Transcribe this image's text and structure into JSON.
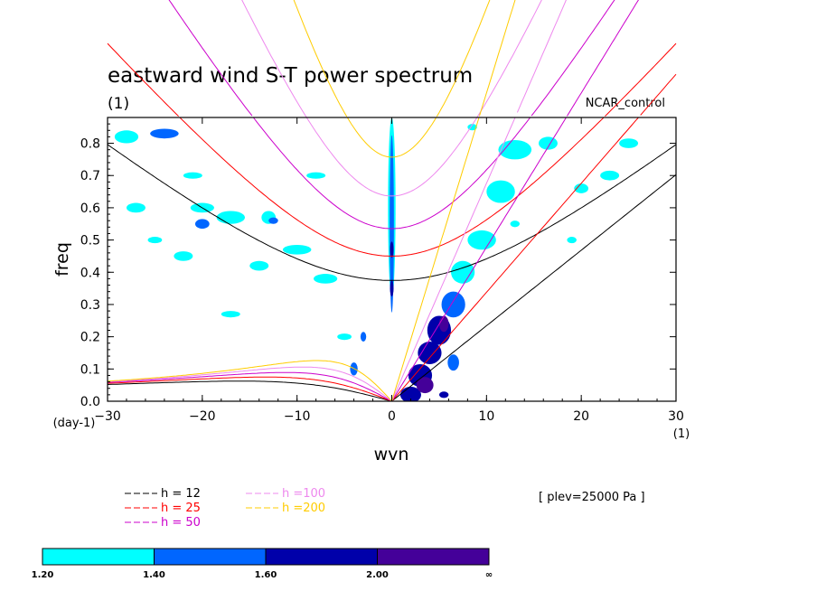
{
  "chart_data": {
    "type": "heatmap",
    "title": "eastward wind S-T power spectrum",
    "subtitle_left": "(1)",
    "subtitle_right": "NCAR_control",
    "xlabel": "wvn",
    "ylabel": "freq",
    "x_unit_label": "(1)",
    "y_unit_label": "(day-1)",
    "xlim": [
      -30,
      30
    ],
    "ylim": [
      0,
      0.88
    ],
    "xticks": [
      -30,
      -20,
      -10,
      0,
      10,
      20,
      30
    ],
    "yticks": [
      0.0,
      0.1,
      0.2,
      0.3,
      0.4,
      0.5,
      0.6,
      0.7,
      0.8
    ],
    "annotation": "[ plev=25000 Pa ]",
    "legend": [
      {
        "name": "h = 12",
        "color": "#000000"
      },
      {
        "name": "h = 25",
        "color": "#ff0000"
      },
      {
        "name": "h = 50",
        "color": "#cc00cc"
      },
      {
        "name": "h =100",
        "color": "#ee88ee"
      },
      {
        "name": "h =200",
        "color": "#ffcc00"
      }
    ],
    "colorbar": {
      "levels": [
        "1.20",
        "1.40",
        "1.60",
        "2.00",
        "∞"
      ],
      "colors": [
        "#00ffff",
        "#0066ff",
        "#0000aa",
        "#440099"
      ]
    },
    "dispersion_curves": {
      "equivalent_depths": [
        12,
        25,
        50,
        100,
        200
      ],
      "families": [
        "kelvin",
        "n1_inertio_gravity",
        "n1_rossby"
      ]
    },
    "contour_regions": [
      {
        "x": 0.0,
        "y": 0.6,
        "w": 0.8,
        "h": 0.56,
        "level": 1
      },
      {
        "x": 0.0,
        "y": 0.55,
        "w": 0.45,
        "h": 0.55,
        "level": 2
      },
      {
        "x": 0.0,
        "y": 0.47,
        "w": 0.35,
        "h": 0.05,
        "level": 3
      },
      {
        "x": 0.0,
        "y": 0.35,
        "w": 0.35,
        "h": 0.05,
        "level": 3
      },
      {
        "x": 2.0,
        "y": 0.02,
        "w": 2.2,
        "h": 0.05,
        "level": 3
      },
      {
        "x": 3.0,
        "y": 0.08,
        "w": 2.5,
        "h": 0.07,
        "level": 3
      },
      {
        "x": 4.0,
        "y": 0.15,
        "w": 2.5,
        "h": 0.07,
        "level": 3
      },
      {
        "x": 5.0,
        "y": 0.22,
        "w": 2.5,
        "h": 0.09,
        "level": 3
      },
      {
        "x": 6.5,
        "y": 0.3,
        "w": 2.5,
        "h": 0.08,
        "level": 2
      },
      {
        "x": 7.5,
        "y": 0.4,
        "w": 2.5,
        "h": 0.07,
        "level": 1
      },
      {
        "x": 5.5,
        "y": 0.02,
        "w": 1.0,
        "h": 0.02,
        "level": 3
      },
      {
        "x": 3.5,
        "y": 0.05,
        "w": 1.8,
        "h": 0.05,
        "level": 4
      },
      {
        "x": 5.5,
        "y": 0.24,
        "w": 1.0,
        "h": 0.05,
        "level": 4
      },
      {
        "x": 6.5,
        "y": 0.12,
        "w": 1.2,
        "h": 0.05,
        "level": 2
      },
      {
        "x": 9.5,
        "y": 0.5,
        "w": 3.0,
        "h": 0.06,
        "level": 1
      },
      {
        "x": 11.5,
        "y": 0.65,
        "w": 3.0,
        "h": 0.07,
        "level": 1
      },
      {
        "x": 13.0,
        "y": 0.78,
        "w": 3.5,
        "h": 0.06,
        "level": 1
      },
      {
        "x": -3.0,
        "y": 0.2,
        "w": 0.6,
        "h": 0.03,
        "level": 2
      },
      {
        "x": -4.0,
        "y": 0.1,
        "w": 0.8,
        "h": 0.04,
        "level": 2
      },
      {
        "x": -28.0,
        "y": 0.82,
        "w": 2.5,
        "h": 0.04,
        "level": 1
      },
      {
        "x": -24.0,
        "y": 0.83,
        "w": 3.0,
        "h": 0.03,
        "level": 2
      },
      {
        "x": -20.0,
        "y": 0.6,
        "w": 2.5,
        "h": 0.03,
        "level": 1
      },
      {
        "x": -17.0,
        "y": 0.57,
        "w": 3.0,
        "h": 0.04,
        "level": 1
      },
      {
        "x": -13.0,
        "y": 0.57,
        "w": 1.5,
        "h": 0.04,
        "level": 1
      },
      {
        "x": -20.0,
        "y": 0.55,
        "w": 1.5,
        "h": 0.03,
        "level": 2
      },
      {
        "x": -12.5,
        "y": 0.56,
        "w": 1.0,
        "h": 0.02,
        "level": 2
      },
      {
        "x": -10.0,
        "y": 0.47,
        "w": 3.0,
        "h": 0.03,
        "level": 1
      },
      {
        "x": -7.0,
        "y": 0.38,
        "w": 2.5,
        "h": 0.03,
        "level": 1
      },
      {
        "x": -14.0,
        "y": 0.42,
        "w": 2.0,
        "h": 0.03,
        "level": 1
      },
      {
        "x": -27.0,
        "y": 0.6,
        "w": 2.0,
        "h": 0.03,
        "level": 1
      },
      {
        "x": -25.0,
        "y": 0.5,
        "w": 1.5,
        "h": 0.02,
        "level": 1
      },
      {
        "x": -22.0,
        "y": 0.45,
        "w": 2.0,
        "h": 0.03,
        "level": 1
      },
      {
        "x": -17.0,
        "y": 0.27,
        "w": 2.0,
        "h": 0.02,
        "level": 1
      },
      {
        "x": -5.0,
        "y": 0.2,
        "w": 1.5,
        "h": 0.02,
        "level": 1
      },
      {
        "x": -8.0,
        "y": 0.7,
        "w": 2.0,
        "h": 0.02,
        "level": 1
      },
      {
        "x": -21.0,
        "y": 0.7,
        "w": 2.0,
        "h": 0.02,
        "level": 1
      },
      {
        "x": 16.5,
        "y": 0.8,
        "w": 2.0,
        "h": 0.04,
        "level": 1
      },
      {
        "x": 23.0,
        "y": 0.7,
        "w": 2.0,
        "h": 0.03,
        "level": 1
      },
      {
        "x": 25.0,
        "y": 0.8,
        "w": 2.0,
        "h": 0.03,
        "level": 1
      },
      {
        "x": 20.0,
        "y": 0.66,
        "w": 1.5,
        "h": 0.03,
        "level": 1
      },
      {
        "x": 13.0,
        "y": 0.55,
        "w": 1.0,
        "h": 0.02,
        "level": 1
      },
      {
        "x": 8.5,
        "y": 0.85,
        "w": 1.0,
        "h": 0.02,
        "level": 1
      },
      {
        "x": 19.0,
        "y": 0.5,
        "w": 1.0,
        "h": 0.02,
        "level": 1
      }
    ]
  }
}
